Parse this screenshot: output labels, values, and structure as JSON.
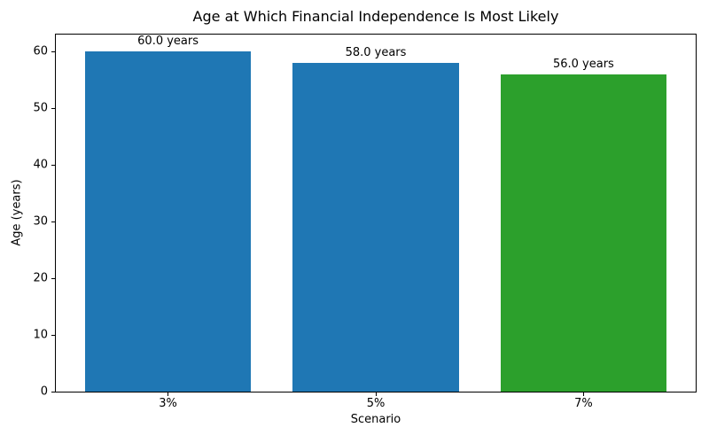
{
  "chart_data": {
    "type": "bar",
    "title": "Age at Which Financial Independence Is Most Likely",
    "xlabel": "Scenario",
    "ylabel": "Age (years)",
    "categories": [
      "3%",
      "5%",
      "7%"
    ],
    "values": [
      60.0,
      58.0,
      56.0
    ],
    "bar_labels": [
      "60.0 years",
      "58.0 years",
      "56.0 years"
    ],
    "bar_colors": [
      "#1f77b4",
      "#1f77b4",
      "#2ca02c"
    ],
    "ylim": [
      0,
      63
    ],
    "yticks": [
      0,
      10,
      20,
      30,
      40,
      50,
      60
    ],
    "bar_width_fraction": 0.8,
    "grid": false,
    "legend_position": "none"
  }
}
